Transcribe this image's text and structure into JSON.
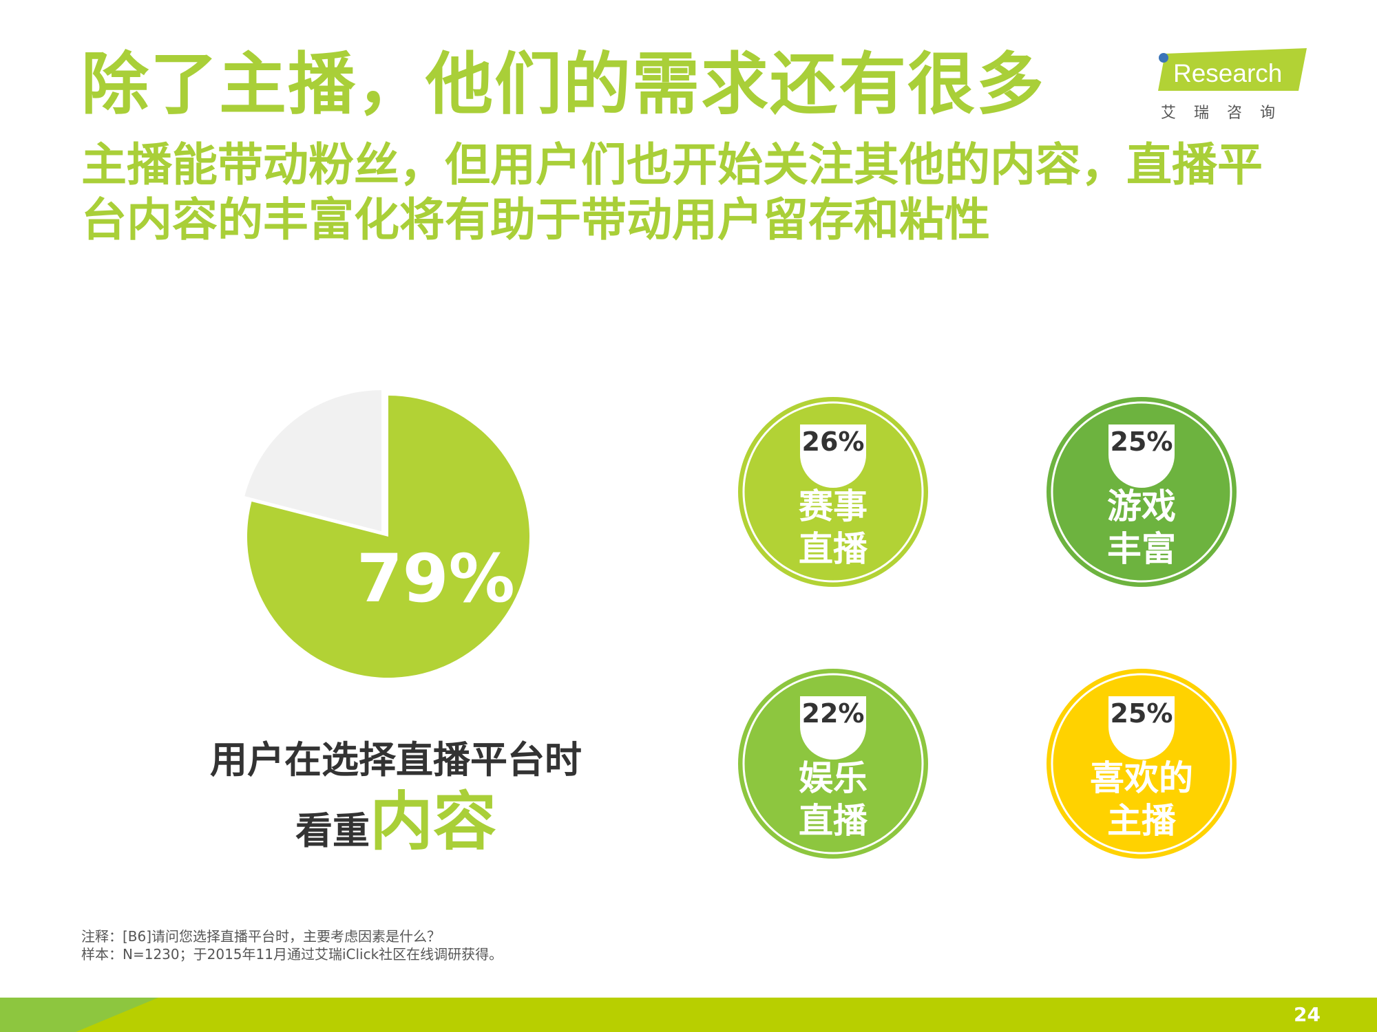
{
  "title": "除了主播，他们的需求还有很多",
  "subtitle": "主播能带动粉丝，但用户们也开始关注其他的内容，直播平台内容的丰富化将有助于带动用户留存和粘性",
  "logo": {
    "wordmark": "Research",
    "cn": "艾瑞咨询"
  },
  "chart_data": [
    {
      "type": "pie",
      "slices": [
        {
          "label": "79%",
          "value": 79,
          "color": "#b2d235"
        },
        {
          "label": "",
          "value": 21,
          "color": "#f1f1f1"
        }
      ]
    },
    {
      "type": "bubble",
      "items": [
        {
          "label_line1": "赛事",
          "label_line2": "直播",
          "value": 26,
          "pct_label": "26%",
          "color": "#b2d235"
        },
        {
          "label_line1": "游戏",
          "label_line2": "丰富",
          "value": 25,
          "pct_label": "25%",
          "color": "#6db33f"
        },
        {
          "label_line1": "娱乐",
          "label_line2": "直播",
          "value": 22,
          "pct_label": "22%",
          "color": "#8dc63f"
        },
        {
          "label_line1": "喜欢的",
          "label_line2": "主播",
          "value": 25,
          "pct_label": "25%",
          "color": "#ffd200"
        }
      ]
    }
  ],
  "caption": {
    "line1": "用户在选择直播平台时",
    "line2_prefix": "看重",
    "line2_highlight": "内容"
  },
  "notes": {
    "line1": "注释：[B6]请问您选择直播平台时，主要考虑因素是什么？",
    "line2": "样本：N=1230；于2015年11月通过艾瑞iClick社区在线调研获得。"
  },
  "page_number": "24"
}
